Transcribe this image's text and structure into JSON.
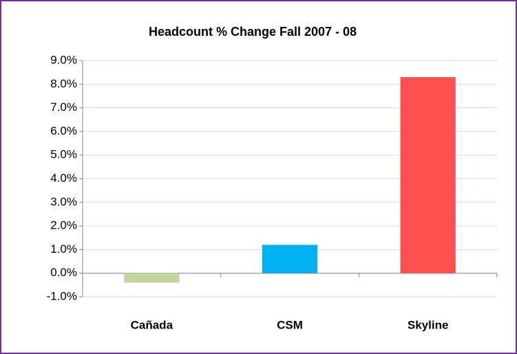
{
  "chart_data": {
    "type": "bar",
    "title": "Headcount % Change Fall 2007 - 08",
    "categories": [
      "Cañada",
      "CSM",
      "Skyline"
    ],
    "values": [
      -0.4,
      1.2,
      8.3
    ],
    "colors": [
      "#c3d69b",
      "#00b0f0",
      "#ff5050"
    ],
    "ylim": [
      -1,
      9
    ],
    "yticks": [
      {
        "value": -1,
        "label": "-1.0%"
      },
      {
        "value": 0,
        "label": "0.0%"
      },
      {
        "value": 1,
        "label": "1.0%"
      },
      {
        "value": 2,
        "label": "2.0%"
      },
      {
        "value": 3,
        "label": "3.0%"
      },
      {
        "value": 4,
        "label": "4.0%"
      },
      {
        "value": 5,
        "label": "5.0%"
      },
      {
        "value": 6,
        "label": "6.0%"
      },
      {
        "value": 7,
        "label": "7.0%"
      },
      {
        "value": 8,
        "label": "8.0%"
      },
      {
        "value": 9,
        "label": "9.0%"
      }
    ],
    "grid": true
  }
}
